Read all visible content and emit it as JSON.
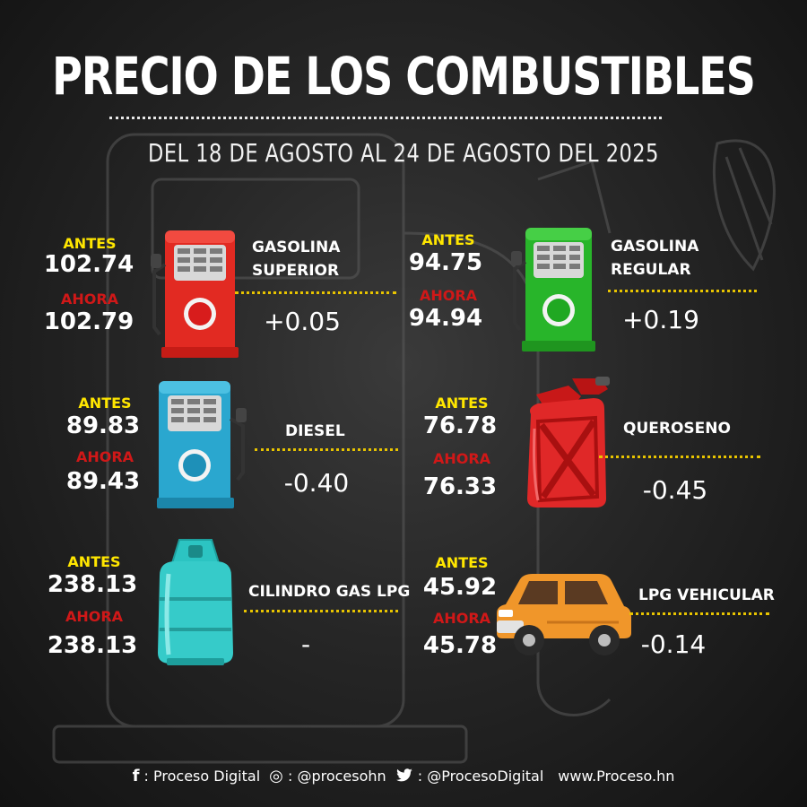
{
  "header": {
    "title": "PRECIO DE LOS COMBUSTIBLES",
    "subtitle": "DEL 18  DE AGOSTO AL 24 DE AGOSTO DEL 2025"
  },
  "labels": {
    "antes": "ANTES",
    "ahora": "AHORA"
  },
  "colors": {
    "antes": "#ffe600",
    "ahora": "#d01818",
    "dotted_line": "#e8c400"
  },
  "fuels": [
    {
      "id": "gasolina-superior",
      "name_line1": "GASOLINA",
      "name_line2": "SUPERIOR",
      "antes": "102.74",
      "ahora": "102.79",
      "diff": "+0.05",
      "icon": "red-fuel-pump-icon"
    },
    {
      "id": "gasolina-regular",
      "name_line1": "GASOLINA",
      "name_line2": "REGULAR",
      "antes": "94.75",
      "ahora": "94.94",
      "diff": "+0.19",
      "icon": "green-fuel-pump-icon"
    },
    {
      "id": "diesel",
      "name_line1": "DIESEL",
      "name_line2": "",
      "antes": "89.83",
      "ahora": "89.43",
      "diff": "-0.40",
      "icon": "blue-fuel-pump-icon"
    },
    {
      "id": "queroseno",
      "name_line1": "QUEROSENO",
      "name_line2": "",
      "antes": "76.78",
      "ahora": "76.33",
      "diff": "-0.45",
      "icon": "red-jerrycan-icon"
    },
    {
      "id": "cilindro-gas-lpg",
      "name_line1": "CILINDRO GAS LPG",
      "name_line2": "",
      "antes": "238.13",
      "ahora": "238.13",
      "diff": "-",
      "icon": "gas-cylinder-icon"
    },
    {
      "id": "lpg-vehicular",
      "name_line1": "LPG VEHICULAR",
      "name_line2": "",
      "antes": "45.92",
      "ahora": "45.78",
      "diff": "-0.14",
      "icon": "orange-car-icon"
    }
  ],
  "footer": {
    "facebook_icon": "facebook-icon",
    "facebook": ": Proceso Digital",
    "instagram_icon": "instagram-icon",
    "instagram": ": @procesohn",
    "twitter_icon": "twitter-icon",
    "twitter": ": @ProcesoDigital",
    "website": "www.Proceso.hn"
  }
}
